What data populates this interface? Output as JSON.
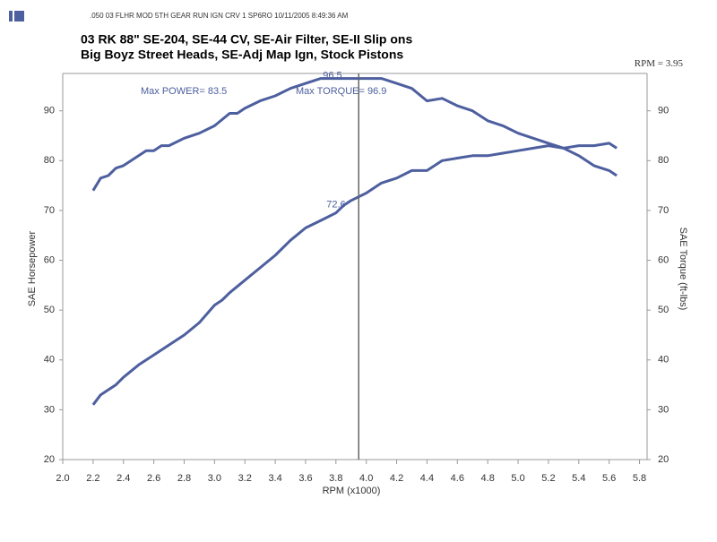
{
  "header": {
    "run_info": ".050   03 FLHR MOD 5TH GEAR RUN IGN CRV 1 SP6RO  10/11/2005 8:49:36 AM"
  },
  "chart_data": {
    "type": "line",
    "title": [
      "03 RK 88\"  SE-204, SE-44 CV, SE-Air Filter, SE-II Slip ons",
      "Big Boyz Street Heads, SE-Adj Map Ign, Stock Pistons"
    ],
    "xlabel": "RPM (x1000)",
    "ylabel": "SAE Horsepower",
    "y2label": "SAE Torque (ft-lbs)",
    "xlim": [
      2.0,
      5.85
    ],
    "ylim": [
      20,
      97.5
    ],
    "y2lim": [
      20,
      97.5
    ],
    "xticks": [
      {
        "value": 2.0,
        "label": "2.0"
      },
      2.2,
      2.4,
      2.6,
      2.8,
      {
        "value": 3.0,
        "label": "3.0"
      },
      3.2,
      3.4,
      3.6,
      3.8,
      {
        "value": 4.0,
        "label": "4.0"
      },
      4.2,
      4.4,
      4.6,
      4.8,
      {
        "value": 5.0,
        "label": "5.0"
      },
      5.2,
      5.4,
      5.6,
      5.8
    ],
    "yticks": [
      20,
      30,
      40,
      50,
      60,
      70,
      80,
      90
    ],
    "y2ticks": [
      20,
      30,
      40,
      50,
      60,
      70,
      80,
      90
    ],
    "cursor": {
      "label": "RPM =",
      "value": 3.95,
      "readouts": [
        96.5,
        72.6
      ]
    },
    "annotations": [
      {
        "label": "Max POWER=",
        "value": 83.5
      },
      {
        "label": "Max TORQUE=",
        "value": 96.9
      }
    ],
    "series": [
      {
        "name": "SAE Torque",
        "color": "#4d5f9e",
        "axis": "y2",
        "x": [
          2.2,
          2.25,
          2.3,
          2.35,
          2.4,
          2.5,
          2.55,
          2.6,
          2.65,
          2.7,
          2.8,
          2.9,
          3.0,
          3.1,
          3.15,
          3.2,
          3.3,
          3.4,
          3.5,
          3.6,
          3.7,
          3.8,
          3.9,
          4.0,
          4.1,
          4.2,
          4.3,
          4.4,
          4.5,
          4.6,
          4.7,
          4.8,
          4.9,
          5.0,
          5.1,
          5.2,
          5.3,
          5.4,
          5.5,
          5.6,
          5.65
        ],
        "values": [
          74,
          76.5,
          77,
          78.5,
          79,
          81,
          82,
          82,
          83,
          83,
          84.5,
          85.5,
          87,
          89.5,
          89.5,
          90.5,
          92,
          93,
          94.5,
          95.5,
          96.5,
          96.5,
          96.5,
          96.5,
          96.5,
          95.5,
          94.5,
          92,
          92.5,
          91,
          90,
          88,
          87,
          85.5,
          84.5,
          83.5,
          82.5,
          81,
          79,
          78,
          77
        ]
      },
      {
        "name": "SAE Horsepower",
        "color": "#4d5f9e",
        "x": [
          2.2,
          2.25,
          2.3,
          2.35,
          2.4,
          2.5,
          2.6,
          2.7,
          2.8,
          2.9,
          3.0,
          3.05,
          3.1,
          3.2,
          3.3,
          3.4,
          3.5,
          3.6,
          3.7,
          3.8,
          3.85,
          3.9,
          4.0,
          4.1,
          4.2,
          4.3,
          4.4,
          4.5,
          4.6,
          4.7,
          4.8,
          4.9,
          5.0,
          5.1,
          5.2,
          5.3,
          5.4,
          5.5,
          5.6,
          5.65
        ],
        "values": [
          31,
          33,
          34,
          35,
          36.5,
          39,
          41,
          43,
          45,
          47.5,
          51,
          52,
          53.5,
          56,
          58.5,
          61,
          64,
          66.5,
          68,
          69.5,
          71,
          72,
          73.5,
          75.5,
          76.5,
          78,
          78,
          80,
          80.5,
          81,
          81,
          81.5,
          82,
          82.5,
          83,
          82.5,
          83,
          83,
          83.5,
          82.5
        ]
      }
    ]
  }
}
